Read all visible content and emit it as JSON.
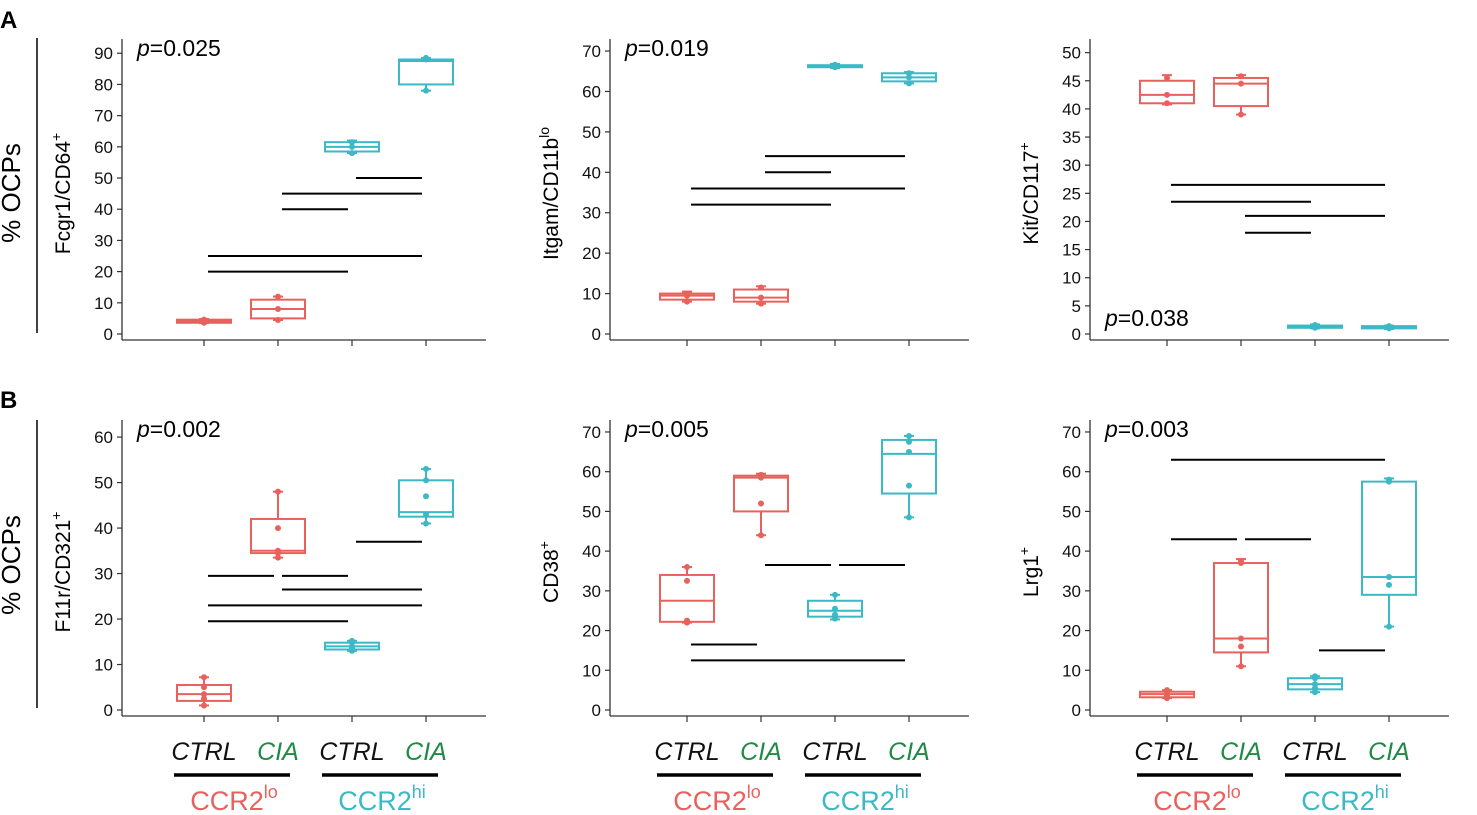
{
  "figure": {
    "row_label": "% OCPs",
    "panel_labels": [
      "A",
      "B"
    ],
    "group_labels": [
      {
        "base": "CCR2",
        "sup": "lo",
        "color": "#E8615C"
      },
      {
        "base": "CCR2",
        "sup": "hi",
        "color": "#3BB9C4"
      }
    ],
    "condition_labels": [
      {
        "text": "CTRL",
        "color": "#111111"
      },
      {
        "text": "CIA",
        "color": "#1F8A45"
      },
      {
        "text": "CTRL",
        "color": "#111111"
      },
      {
        "text": "CIA",
        "color": "#1F8A45"
      }
    ],
    "colors": {
      "lo": "#E8615C",
      "hi": "#3BB9C4",
      "bracket": "#000000"
    }
  },
  "chart_data": [
    {
      "type": "box",
      "panel": "A",
      "ylabel_main": "Fcgr1/CD64",
      "ylabel_sup": "+",
      "pvalue_italic": "p",
      "pvalue_text": "=0.025",
      "pvalue_position": "top-left",
      "ylim": [
        0,
        92
      ],
      "yticks": [
        0,
        10,
        20,
        30,
        40,
        50,
        60,
        70,
        80,
        90
      ],
      "categories": [
        "CTRL",
        "CIA",
        "CTRL",
        "CIA"
      ],
      "series": [
        {
          "name": "CCR2lo CTRL",
          "group": "lo",
          "min": 3.5,
          "q1": 3.6,
          "median": 4.0,
          "q3": 4.6,
          "max": 4.8,
          "points": [
            3.6,
            4.0,
            4.6
          ]
        },
        {
          "name": "CCR2lo CIA",
          "group": "lo",
          "min": 4.5,
          "q1": 5.0,
          "median": 8.0,
          "q3": 11.0,
          "max": 12.0,
          "points": [
            4.5,
            8.0,
            12.0
          ]
        },
        {
          "name": "CCR2hi CTRL",
          "group": "hi",
          "min": 58.0,
          "q1": 58.5,
          "median": 60.0,
          "q3": 61.5,
          "max": 62.0,
          "points": [
            58.0,
            60.0,
            61.5
          ]
        },
        {
          "name": "CCR2hi CIA",
          "group": "hi",
          "min": 78.0,
          "q1": 80.0,
          "median": 87.5,
          "q3": 88.0,
          "max": 88.5,
          "points": [
            78.0,
            88.0,
            88.5
          ]
        }
      ],
      "brackets": [
        {
          "from": 0,
          "to": 2,
          "y": 20
        },
        {
          "from": 0,
          "to": 3,
          "y": 25
        },
        {
          "from": 1,
          "to": 2,
          "y": 40
        },
        {
          "from": 1,
          "to": 3,
          "y": 45
        },
        {
          "from": 2,
          "to": 3,
          "y": 50
        }
      ]
    },
    {
      "type": "box",
      "panel": "A",
      "ylabel_main": "Itgam/CD11b",
      "ylabel_sup": "lo",
      "pvalue_italic": "p",
      "pvalue_text": "=0.019",
      "pvalue_position": "top-left",
      "ylim": [
        0,
        71
      ],
      "yticks": [
        0,
        10,
        20,
        30,
        40,
        50,
        60,
        70
      ],
      "categories": [
        "CTRL",
        "CIA",
        "CTRL",
        "CIA"
      ],
      "series": [
        {
          "name": "CCR2lo CTRL",
          "group": "lo",
          "min": 8.0,
          "q1": 8.5,
          "median": 9.5,
          "q3": 10.0,
          "max": 10.5,
          "points": [
            8.0,
            9.5,
            10.0
          ]
        },
        {
          "name": "CCR2lo CIA",
          "group": "lo",
          "min": 7.5,
          "q1": 8.0,
          "median": 9.0,
          "q3": 11.0,
          "max": 11.8,
          "points": [
            7.5,
            9.0,
            11.5
          ]
        },
        {
          "name": "CCR2hi CTRL",
          "group": "hi",
          "min": 65.8,
          "q1": 66.0,
          "median": 66.2,
          "q3": 66.5,
          "max": 66.8,
          "points": [
            66.0,
            66.3,
            66.6
          ]
        },
        {
          "name": "CCR2hi CIA",
          "group": "hi",
          "min": 62.0,
          "q1": 62.5,
          "median": 63.5,
          "q3": 64.5,
          "max": 64.8,
          "points": [
            62.0,
            63.5,
            64.5
          ]
        }
      ],
      "brackets": [
        {
          "from": 0,
          "to": 2,
          "y": 32
        },
        {
          "from": 0,
          "to": 3,
          "y": 36
        },
        {
          "from": 1,
          "to": 2,
          "y": 40
        },
        {
          "from": 1,
          "to": 3,
          "y": 44
        }
      ]
    },
    {
      "type": "box",
      "panel": "A",
      "ylabel_main": "Kit/CD117",
      "ylabel_sup": "+",
      "pvalue_italic": "p",
      "pvalue_text": "=0.038",
      "pvalue_position": "bottom-left",
      "ylim": [
        0,
        51
      ],
      "yticks": [
        0,
        5,
        10,
        15,
        20,
        25,
        30,
        35,
        40,
        45,
        50
      ],
      "categories": [
        "CTRL",
        "CIA",
        "CTRL",
        "CIA"
      ],
      "series": [
        {
          "name": "CCR2lo CTRL",
          "group": "lo",
          "min": 40.8,
          "q1": 41.0,
          "median": 42.5,
          "q3": 45.0,
          "max": 46.0,
          "points": [
            41.0,
            42.5,
            45.5
          ]
        },
        {
          "name": "CCR2lo CIA",
          "group": "lo",
          "min": 39.0,
          "q1": 40.5,
          "median": 44.5,
          "q3": 45.5,
          "max": 46.0,
          "points": [
            39.0,
            44.5,
            45.8
          ]
        },
        {
          "name": "CCR2hi CTRL",
          "group": "hi",
          "min": 1.0,
          "q1": 1.1,
          "median": 1.3,
          "q3": 1.5,
          "max": 1.7,
          "points": [
            1.1,
            1.3,
            1.6
          ]
        },
        {
          "name": "CCR2hi CIA",
          "group": "hi",
          "min": 0.9,
          "q1": 1.0,
          "median": 1.2,
          "q3": 1.4,
          "max": 1.5,
          "points": [
            1.0,
            1.2,
            1.4
          ]
        }
      ],
      "brackets": [
        {
          "from": 1,
          "to": 2,
          "y": 18
        },
        {
          "from": 1,
          "to": 3,
          "y": 21
        },
        {
          "from": 0,
          "to": 2,
          "y": 23.5
        },
        {
          "from": 0,
          "to": 3,
          "y": 26.5
        }
      ]
    },
    {
      "type": "box",
      "panel": "B",
      "ylabel_main": "F11r/CD321",
      "ylabel_sup": "+",
      "pvalue_italic": "p",
      "pvalue_text": "=0.002",
      "pvalue_position": "top-left",
      "ylim": [
        0,
        62
      ],
      "yticks": [
        0,
        10,
        20,
        30,
        40,
        50,
        60
      ],
      "categories": [
        "CTRL",
        "CIA",
        "CTRL",
        "CIA"
      ],
      "series": [
        {
          "name": "CCR2lo CTRL",
          "group": "lo",
          "min": 1.0,
          "q1": 2.0,
          "median": 3.5,
          "q3": 5.5,
          "max": 7.2,
          "points": [
            1.0,
            2.5,
            3.5,
            5.0,
            7.2
          ]
        },
        {
          "name": "CCR2lo CIA",
          "group": "lo",
          "min": 33.5,
          "q1": 34.5,
          "median": 35.0,
          "q3": 42.0,
          "max": 48.0,
          "points": [
            33.5,
            34.5,
            35.0,
            40.0,
            48.0
          ]
        },
        {
          "name": "CCR2hi CTRL",
          "group": "hi",
          "min": 13.0,
          "q1": 13.3,
          "median": 14.0,
          "q3": 14.8,
          "max": 15.2,
          "points": [
            13.0,
            13.5,
            14.0,
            14.8,
            15.2
          ]
        },
        {
          "name": "CCR2hi CIA",
          "group": "hi",
          "min": 41.0,
          "q1": 42.5,
          "median": 43.5,
          "q3": 50.5,
          "max": 53.0,
          "points": [
            41.0,
            43.0,
            47.0,
            50.5,
            53.0
          ]
        }
      ],
      "brackets": [
        {
          "from": 0,
          "to": 2,
          "y": 19.5
        },
        {
          "from": 0,
          "to": 3,
          "y": 23
        },
        {
          "from": 1,
          "to": 3,
          "y": 26.5
        },
        {
          "from": 0,
          "to": 1,
          "y": 29.5
        },
        {
          "from": 1,
          "to": 2,
          "y": 29.5
        },
        {
          "from": 2,
          "to": 3,
          "y": 37
        }
      ]
    },
    {
      "type": "box",
      "panel": "B",
      "ylabel_main": "CD38",
      "ylabel_sup": "+",
      "pvalue_italic": "p",
      "pvalue_text": "=0.005",
      "pvalue_position": "top-left",
      "ylim": [
        0,
        71
      ],
      "yticks": [
        0,
        10,
        20,
        30,
        40,
        50,
        60,
        70
      ],
      "categories": [
        "CTRL",
        "CIA",
        "CTRL",
        "CIA"
      ],
      "series": [
        {
          "name": "CCR2lo CTRL",
          "group": "lo",
          "min": 22.0,
          "q1": 22.2,
          "median": 27.5,
          "q3": 34.0,
          "max": 36.0,
          "points": [
            22.0,
            22.5,
            32.5,
            36.0
          ]
        },
        {
          "name": "CCR2lo CIA",
          "group": "lo",
          "min": 44.0,
          "q1": 50.0,
          "median": 58.5,
          "q3": 59.0,
          "max": 59.5,
          "points": [
            44.0,
            52.0,
            58.5,
            59.2
          ]
        },
        {
          "name": "CCR2hi CTRL",
          "group": "hi",
          "min": 22.8,
          "q1": 23.5,
          "median": 25.0,
          "q3": 27.5,
          "max": 29.0,
          "points": [
            23.0,
            24.0,
            25.5,
            29.0
          ]
        },
        {
          "name": "CCR2hi CIA",
          "group": "hi",
          "min": 48.5,
          "q1": 54.5,
          "median": 64.5,
          "q3": 68.0,
          "max": 69.0,
          "points": [
            48.5,
            56.5,
            65.0,
            67.5,
            69.0
          ]
        }
      ],
      "brackets": [
        {
          "from": 0,
          "to": 3,
          "y": 12.5
        },
        {
          "from": 0,
          "to": 1,
          "y": 16.5
        },
        {
          "from": 1,
          "to": 2,
          "y": 36.5
        },
        {
          "from": 2,
          "to": 3,
          "y": 36.5
        }
      ]
    },
    {
      "type": "box",
      "panel": "B",
      "ylabel_main": "Lrg1",
      "ylabel_sup": "+",
      "pvalue_italic": "p",
      "pvalue_text": "=0.003",
      "pvalue_position": "top-left",
      "ylim": [
        0,
        71
      ],
      "yticks": [
        0,
        10,
        20,
        30,
        40,
        50,
        60,
        70
      ],
      "categories": [
        "CTRL",
        "CIA",
        "CTRL",
        "CIA"
      ],
      "series": [
        {
          "name": "CCR2lo CTRL",
          "group": "lo",
          "min": 3.0,
          "q1": 3.2,
          "median": 4.0,
          "q3": 4.6,
          "max": 5.0,
          "points": [
            3.0,
            3.5,
            4.0,
            4.6,
            5.0
          ]
        },
        {
          "name": "CCR2lo CIA",
          "group": "lo",
          "min": 11.0,
          "q1": 14.5,
          "median": 18.0,
          "q3": 37.0,
          "max": 38.0,
          "points": [
            11.0,
            16.0,
            18.0,
            37.0,
            37.5
          ]
        },
        {
          "name": "CCR2hi CTRL",
          "group": "hi",
          "min": 4.5,
          "q1": 5.2,
          "median": 6.5,
          "q3": 8.0,
          "max": 8.5,
          "points": [
            4.5,
            5.5,
            6.5,
            8.0,
            8.5
          ]
        },
        {
          "name": "CCR2hi CIA",
          "group": "hi",
          "min": 21.0,
          "q1": 29.0,
          "median": 33.5,
          "q3": 57.5,
          "max": 58.3,
          "points": [
            21.0,
            31.5,
            33.5,
            57.5,
            58.0
          ]
        }
      ],
      "brackets": [
        {
          "from": 2,
          "to": 3,
          "y": 15
        },
        {
          "from": 0,
          "to": 1,
          "y": 43
        },
        {
          "from": 1,
          "to": 2,
          "y": 43
        },
        {
          "from": 0,
          "to": 3,
          "y": 63
        }
      ]
    }
  ]
}
